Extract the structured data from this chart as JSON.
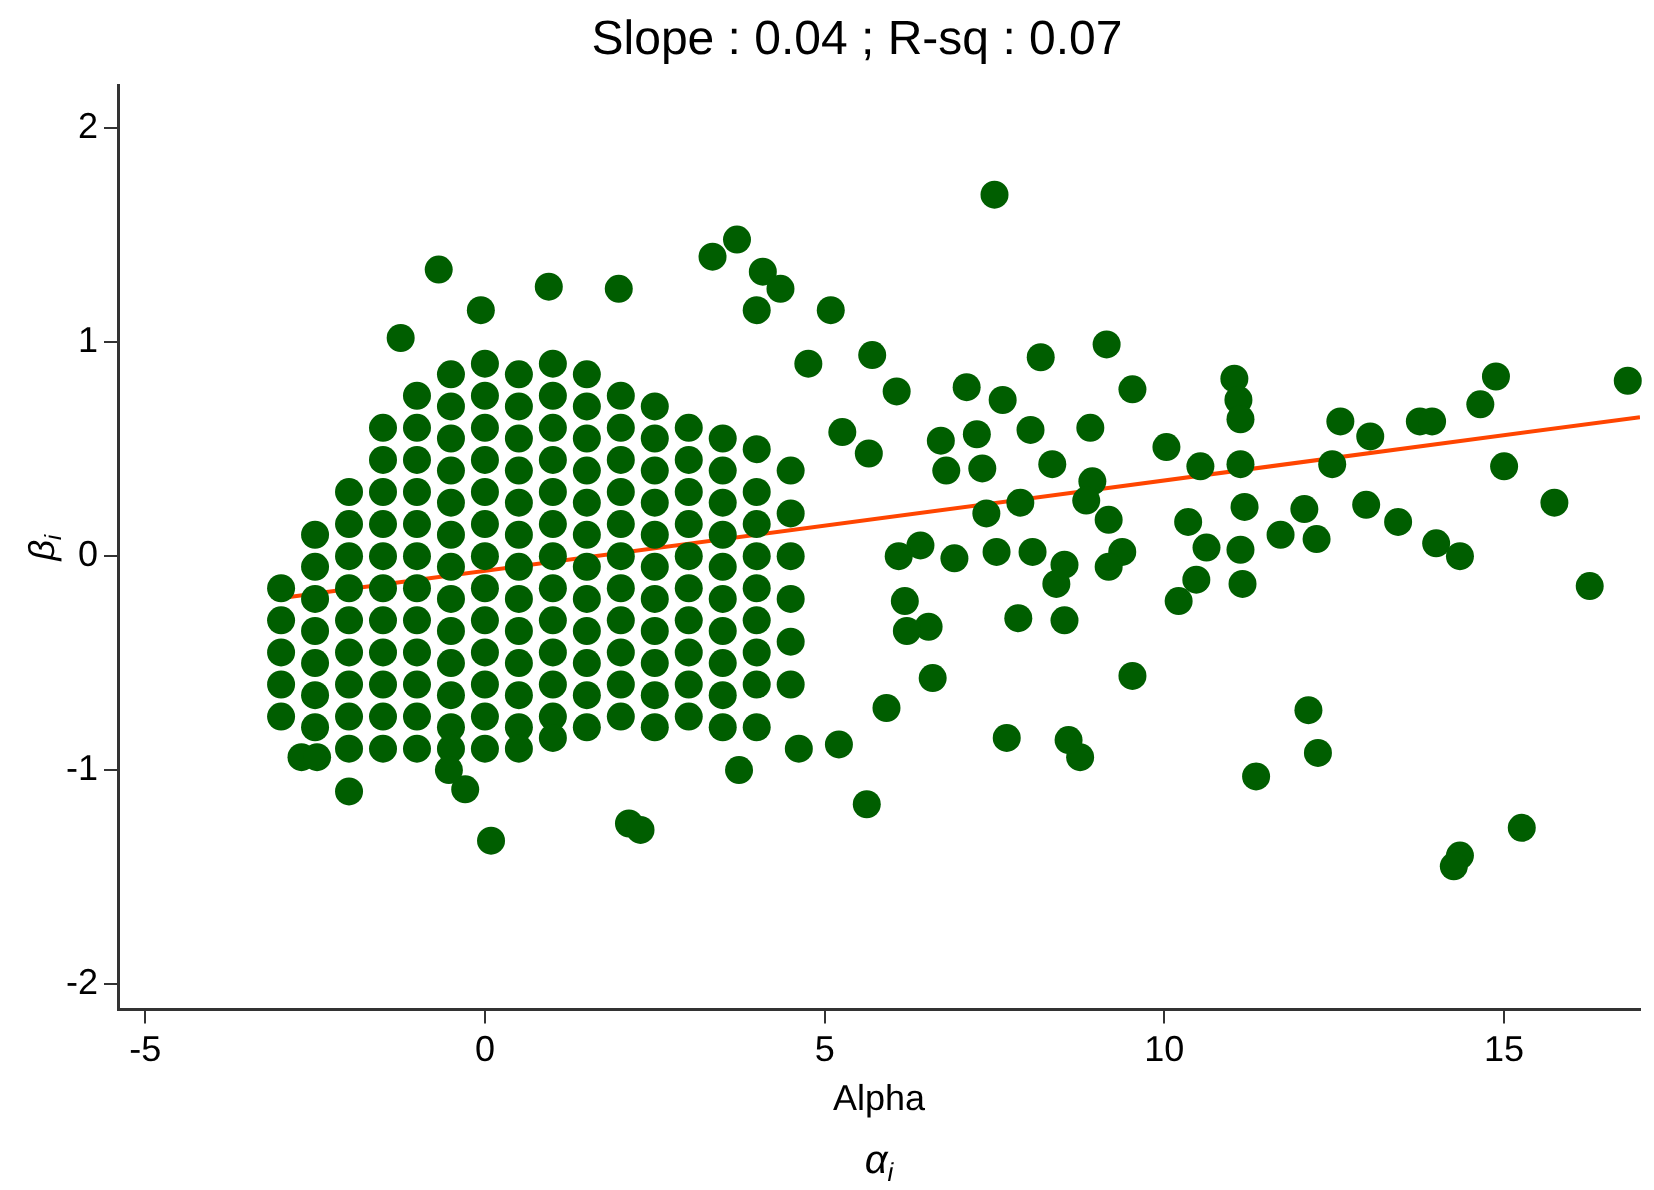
{
  "chart_data": {
    "type": "scatter",
    "title": "Slope : 0.04 ; R-sq : 0.07",
    "xlabel": "Alpha",
    "ylabel": "β$_{i}$",
    "annotations": [
      "α$_{i}$"
    ],
    "xlim": [
      -5.4,
      17
    ],
    "xticks": [
      -5,
      0,
      5,
      10,
      15
    ],
    "ylim": [
      -2.12,
      2.2
    ],
    "yticks": [
      -2,
      -1,
      0,
      1,
      2
    ],
    "grid": false,
    "legend": false,
    "series": [
      {
        "color": "#005e00",
        "marker": "circle",
        "x": [
          -3,
          -3,
          -3,
          -3,
          -3,
          -2.5,
          -2.5,
          -2.5,
          -2.5,
          -2.5,
          -2.5,
          -2.5,
          -2,
          -2,
          -2,
          -2,
          -2,
          -2,
          -2,
          -2,
          -2,
          -1.5,
          -1.5,
          -1.5,
          -1.5,
          -1.5,
          -1.5,
          -1.5,
          -1.5,
          -1.5,
          -1.5,
          -1.5,
          -1,
          -1,
          -1,
          -1,
          -1,
          -1,
          -1,
          -1,
          -1,
          -1,
          -1,
          -1,
          -0.5,
          -0.5,
          -0.5,
          -0.5,
          -0.5,
          -0.5,
          -0.5,
          -0.5,
          -0.5,
          -0.5,
          -0.5,
          -0.5,
          -0.5,
          0,
          0,
          0,
          0,
          0,
          0,
          0,
          0,
          0,
          0,
          0,
          0,
          0,
          0.5,
          0.5,
          0.5,
          0.5,
          0.5,
          0.5,
          0.5,
          0.5,
          0.5,
          0.5,
          0.5,
          0.5,
          0.5,
          1,
          1,
          1,
          1,
          1,
          1,
          1,
          1,
          1,
          1,
          1,
          1,
          1,
          1.5,
          1.5,
          1.5,
          1.5,
          1.5,
          1.5,
          1.5,
          1.5,
          1.5,
          1.5,
          1.5,
          1.5,
          2,
          2,
          2,
          2,
          2,
          2,
          2,
          2,
          2,
          2,
          2,
          2.5,
          2.5,
          2.5,
          2.5,
          2.5,
          2.5,
          2.5,
          2.5,
          2.5,
          2.5,
          2.5,
          3,
          3,
          3,
          3,
          3,
          3,
          3,
          3,
          3,
          3,
          3.5,
          3.5,
          3.5,
          3.5,
          3.5,
          3.5,
          3.5,
          3.5,
          3.5,
          3.5,
          4,
          4,
          4,
          4,
          4,
          4,
          4,
          4,
          4,
          4.5,
          4.5,
          4.5,
          4.5,
          4.5,
          4.5,
          7.5,
          -0.68,
          3.71,
          3.35,
          0.94,
          1.97,
          -0.06,
          -1.24,
          4.09,
          4.35,
          5.09,
          4.0,
          4.76,
          0.09,
          2.12,
          2.29,
          -0.29,
          -0.53,
          -2.0,
          -2.7,
          -2.47,
          3.74,
          5.62,
          5.7,
          8.18,
          9.15,
          7.09,
          7.62,
          9.53,
          11.03,
          11.09,
          11.12,
          12.59,
          13.76,
          13.94,
          14.88,
          14.65,
          16.82,
          13.03,
          12.47,
          15.0,
          15.74,
          12.97,
          13.44,
          14.0,
          14.35,
          16.26,
          12.06,
          12.24,
          11.71,
          11.18,
          11.12,
          11.15,
          11.12,
          10.35,
          10.62,
          10.47,
          10.21,
          10.03,
          10.53,
          8.91,
          8.94,
          8.85,
          9.18,
          9.38,
          9.18,
          9.53,
          12.12,
          12.26,
          11.35,
          15.26,
          14.35,
          14.26,
          8.76,
          8.59,
          7.68,
          8.53,
          8.41,
          8.53,
          8.06,
          7.85,
          7.32,
          7.24,
          8.03,
          8.35,
          7.88,
          7.53,
          7.38,
          6.91,
          6.71,
          6.53,
          6.59,
          6.21,
          5.91,
          5.21,
          4.62,
          6.06,
          6.41,
          6.09,
          6.18,
          5.65,
          5.26,
          6.79
        ],
        "values": [
          -0.15,
          -0.3,
          -0.45,
          -0.6,
          -0.75,
          0.1,
          -0.05,
          -0.2,
          -0.35,
          -0.5,
          -0.65,
          -0.8,
          0.3,
          0.15,
          0,
          -0.15,
          -0.3,
          -0.45,
          -0.6,
          -0.75,
          -0.9,
          0.6,
          0.45,
          0.3,
          0.15,
          0,
          -0.15,
          -0.3,
          -0.45,
          -0.6,
          -0.75,
          -0.9,
          0.75,
          0.6,
          0.45,
          0.3,
          0.15,
          0,
          -0.15,
          -0.3,
          -0.45,
          -0.6,
          -0.75,
          -0.9,
          0.85,
          0.7,
          0.55,
          0.4,
          0.25,
          0.1,
          -0.05,
          -0.2,
          -0.35,
          -0.5,
          -0.65,
          -0.8,
          -0.9,
          0.9,
          0.75,
          0.6,
          0.45,
          0.3,
          0.15,
          0,
          -0.15,
          -0.3,
          -0.45,
          -0.6,
          -0.75,
          -0.9,
          0.85,
          0.7,
          0.55,
          0.4,
          0.25,
          0.1,
          -0.05,
          -0.2,
          -0.35,
          -0.5,
          -0.65,
          -0.8,
          -0.9,
          0.9,
          0.75,
          0.6,
          0.45,
          0.3,
          0.15,
          0,
          -0.15,
          -0.3,
          -0.45,
          -0.6,
          -0.75,
          -0.85,
          0.85,
          0.7,
          0.55,
          0.4,
          0.25,
          0.1,
          -0.05,
          -0.2,
          -0.35,
          -0.5,
          -0.65,
          -0.8,
          0.75,
          0.6,
          0.45,
          0.3,
          0.15,
          0,
          -0.15,
          -0.3,
          -0.45,
          -0.6,
          -0.75,
          0.7,
          0.55,
          0.4,
          0.25,
          0.1,
          -0.05,
          -0.2,
          -0.35,
          -0.5,
          -0.65,
          -0.8,
          0.6,
          0.45,
          0.3,
          0.15,
          0,
          -0.15,
          -0.3,
          -0.45,
          -0.6,
          -0.75,
          0.55,
          0.4,
          0.25,
          0.1,
          -0.05,
          -0.2,
          -0.35,
          -0.5,
          -0.65,
          -0.8,
          0.5,
          0.3,
          0.15,
          0,
          -0.15,
          -0.3,
          -0.45,
          -0.6,
          -0.8,
          0.4,
          0.2,
          0,
          -0.2,
          -0.4,
          -0.6,
          1.69,
          1.34,
          1.48,
          1.4,
          1.26,
          1.25,
          1.15,
          1.02,
          1.33,
          1.25,
          1.15,
          1.15,
          0.9,
          -1.33,
          -1.25,
          -1.28,
          -1.09,
          -1.0,
          -1.1,
          -0.94,
          -0.94,
          -1.0,
          -1.16,
          0.94,
          0.93,
          0.99,
          0.79,
          0.73,
          0.78,
          0.83,
          0.73,
          0.64,
          0.63,
          0.63,
          0.63,
          0.84,
          0.71,
          0.82,
          0.56,
          0.43,
          0.42,
          0.25,
          0.24,
          0.16,
          0.06,
          0,
          -0.14,
          0.22,
          0.08,
          0.1,
          0.23,
          0.03,
          -0.13,
          0.43,
          0.16,
          0.04,
          -0.11,
          -0.21,
          0.51,
          0.42,
          0.6,
          0.35,
          0.26,
          0.17,
          0.02,
          -0.05,
          -0.56,
          -0.72,
          -0.92,
          -1.03,
          -1.27,
          -1.4,
          -1.45,
          -0.94,
          -0.86,
          -0.85,
          -0.3,
          -0.13,
          -0.04,
          0.02,
          -0.29,
          0.41,
          0.57,
          0.59,
          0.43,
          0.25,
          0.02,
          0.2,
          -0.01,
          0.54,
          -0.33,
          -0.57,
          -0.35,
          -0.71,
          -0.88,
          -0.9,
          0.77,
          0.05,
          0,
          -0.21,
          0.48,
          0.58,
          0.4
        ]
      },
      {
        "type": "line",
        "marker": "none",
        "color": "#ff4500",
        "x": [
          -3.1,
          17
        ],
        "values": [
          -0.2,
          0.65
        ]
      }
    ]
  }
}
